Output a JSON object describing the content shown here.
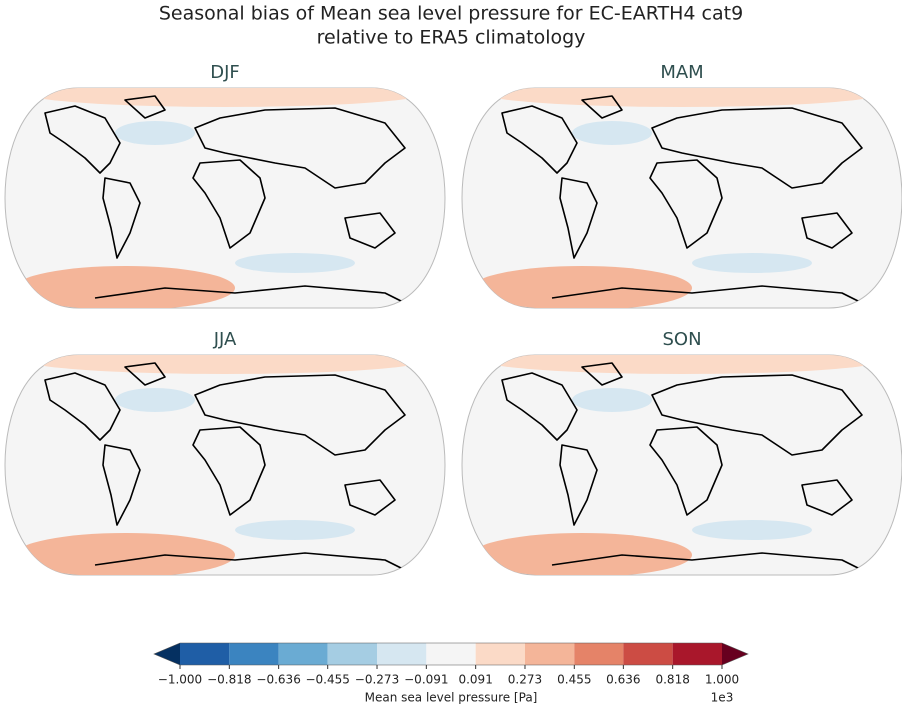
{
  "title": [
    "Seasonal bias of Mean sea level pressure for EC-EARTH4 cat9",
    "relative to ERA5 climatology"
  ],
  "panels": [
    {
      "title": "DJF"
    },
    {
      "title": "MAM"
    },
    {
      "title": "JJA"
    },
    {
      "title": "SON"
    }
  ],
  "colorbar": {
    "label": "Mean sea level pressure [Pa]",
    "offset_label": "1e3",
    "lim": [
      -1,
      1
    ],
    "ticks": [
      {
        "value": -1,
        "label": "−1.000"
      },
      {
        "value": -0.818,
        "label": "−0.818"
      },
      {
        "value": -0.636,
        "label": "−0.636"
      },
      {
        "value": -0.455,
        "label": "−0.455"
      },
      {
        "value": -0.273,
        "label": "−0.273"
      },
      {
        "value": -0.091,
        "label": "−0.091"
      },
      {
        "value": 0.091,
        "label": "0.091"
      },
      {
        "value": 0.273,
        "label": "0.273"
      },
      {
        "value": 0.455,
        "label": "0.455"
      },
      {
        "value": 0.636,
        "label": "0.636"
      },
      {
        "value": 0.818,
        "label": "0.818"
      },
      {
        "value": 1,
        "label": "1.000"
      }
    ],
    "colors": [
      "#1f5ea6",
      "#3b84c0",
      "#6aabd3",
      "#a5cde3",
      "#d6e7f1",
      "#f5f5f5",
      "#fbdac7",
      "#f4b599",
      "#e58368",
      "#cc4c44",
      "#a9172b"
    ],
    "under_color": "#053061",
    "over_color": "#67001f"
  }
}
